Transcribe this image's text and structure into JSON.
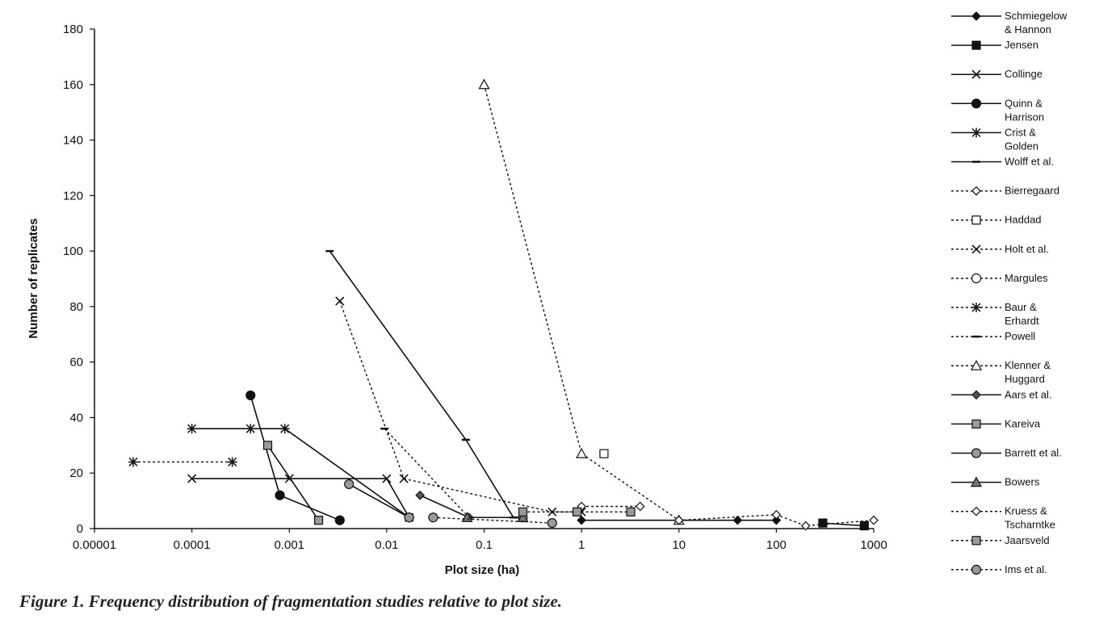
{
  "caption": "Figure 1.  Frequency distribution of fragmentation studies relative to plot size.",
  "chart_data": {
    "type": "scatter",
    "xlabel": "Plot size (ha)",
    "ylabel": "Number of replicates",
    "xscale": "log",
    "xlim": [
      1e-05,
      1000
    ],
    "ylim": [
      0,
      180
    ],
    "xticks": [
      "0.00001",
      "0.0001",
      "0.001",
      "0.01",
      "0.1",
      "1",
      "10",
      "100",
      "1000"
    ],
    "yticks": [
      "0",
      "20",
      "40",
      "60",
      "80",
      "100",
      "120",
      "140",
      "160",
      "180"
    ],
    "grid": false,
    "legend": "right",
    "series": [
      {
        "name": "Schmiegelow & Hannon",
        "name_lines": [
          "Schmiegelow",
          "& Hannon"
        ],
        "line": "solid",
        "marker": "diamond",
        "fill": "#111111",
        "x": [
          1,
          10,
          40,
          100
        ],
        "y": [
          3,
          3,
          3,
          3
        ]
      },
      {
        "name": "Jensen",
        "name_lines": [
          "Jensen"
        ],
        "line": "solid",
        "marker": "square",
        "fill": "#111111",
        "x": [
          300,
          800
        ],
        "y": [
          2,
          1
        ]
      },
      {
        "name": "Collinge",
        "name_lines": [
          "Collinge"
        ],
        "line": "solid",
        "marker": "x",
        "fill": "none",
        "x": [
          0.0001,
          0.001,
          0.01,
          0.017
        ],
        "y": [
          18,
          18,
          18,
          4
        ]
      },
      {
        "name": "Quinn & Harrison",
        "name_lines": [
          "Quinn &",
          "Harrison"
        ],
        "line": "solid",
        "marker": "circle",
        "fill": "#111111",
        "x": [
          0.0004,
          0.0008,
          0.0033
        ],
        "y": [
          48,
          12,
          3
        ]
      },
      {
        "name": "Crist & Golden",
        "name_lines": [
          "Crist &",
          "Golden"
        ],
        "line": "solid",
        "marker": "asterisk",
        "fill": "none",
        "x": [
          0.0001,
          0.0004,
          0.0009,
          0.017
        ],
        "y": [
          36,
          36,
          36,
          4
        ]
      },
      {
        "name": "Wolff et al.",
        "name_lines": [
          "Wolff et al."
        ],
        "line": "solid",
        "marker": "dash",
        "fill": "none",
        "x": [
          0.0026,
          0.065,
          0.2
        ],
        "y": [
          100,
          32,
          4
        ]
      },
      {
        "name": "Bierregaard",
        "name_lines": [
          "Bierregaard"
        ],
        "line": "dotted",
        "marker": "diamond",
        "fill": "#ffffff",
        "x": [
          1,
          4
        ],
        "y": [
          8,
          8
        ]
      },
      {
        "name": "Haddad",
        "name_lines": [
          "Haddad"
        ],
        "line": "dotted",
        "marker": "square",
        "fill": "#ffffff",
        "x": [
          1.7
        ],
        "y": [
          27
        ]
      },
      {
        "name": "Holt et al.",
        "name_lines": [
          "Holt et al."
        ],
        "line": "dotted",
        "marker": "x",
        "fill": "none",
        "x": [
          0.0033,
          0.015,
          0.5,
          1
        ],
        "y": [
          82,
          18,
          6,
          6
        ]
      },
      {
        "name": "Margules",
        "name_lines": [
          "Margules"
        ],
        "line": "dotted",
        "marker": "circle",
        "fill": "#ffffff",
        "x": [
          0.25
        ],
        "y": [
          4
        ]
      },
      {
        "name": "Baur & Erhardt",
        "name_lines": [
          "Baur &",
          "Erhardt"
        ],
        "line": "dotted",
        "marker": "asterisk",
        "fill": "none",
        "x": [
          2.5e-05,
          0.00026
        ],
        "y": [
          24,
          24
        ]
      },
      {
        "name": "Powell",
        "name_lines": [
          "Powell"
        ],
        "line": "dotted",
        "marker": "dash",
        "fill": "none",
        "x": [
          0.0095,
          0.07
        ],
        "y": [
          36,
          4
        ]
      },
      {
        "name": "Klenner & Huggard",
        "name_lines": [
          "Klenner &",
          "Huggard"
        ],
        "line": "dotted",
        "marker": "triangle",
        "fill": "#ffffff",
        "x": [
          0.1,
          1,
          10
        ],
        "y": [
          160,
          27,
          3
        ]
      },
      {
        "name": "Aars et al.",
        "name_lines": [
          "Aars et al."
        ],
        "line": "solid",
        "marker": "diamond",
        "fill": "#555555",
        "x": [
          0.022,
          0.07
        ],
        "y": [
          12,
          4
        ]
      },
      {
        "name": "Kareiva",
        "name_lines": [
          "Kareiva"
        ],
        "line": "solid",
        "marker": "square",
        "fill": "#999999",
        "x": [
          0.0006,
          0.002
        ],
        "y": [
          30,
          3
        ]
      },
      {
        "name": "Barrett et al.",
        "name_lines": [
          "Barrett et al."
        ],
        "line": "solid",
        "marker": "circle",
        "fill": "#999999",
        "x": [
          0.0041,
          0.017
        ],
        "y": [
          16,
          4
        ]
      },
      {
        "name": "Bowers",
        "name_lines": [
          "Bowers"
        ],
        "line": "solid",
        "marker": "triangle",
        "fill": "#777777",
        "x": [
          0.067,
          0.25
        ],
        "y": [
          4,
          4
        ]
      },
      {
        "name": "Kruess & Tscharntke",
        "name_lines": [
          "Kruess &",
          "Tscharntke"
        ],
        "line": "dotted",
        "marker": "diamond",
        "fill": "#ffffff",
        "x": [
          10,
          100,
          200,
          1000
        ],
        "y": [
          3,
          5,
          1,
          3
        ]
      },
      {
        "name": "Jaarsveld",
        "name_lines": [
          "Jaarsveld"
        ],
        "line": "dotted",
        "marker": "square",
        "fill": "#999999",
        "x": [
          0.25,
          0.9,
          3.2
        ],
        "y": [
          6,
          6,
          6
        ]
      },
      {
        "name": "Ims et al.",
        "name_lines": [
          "Ims et al."
        ],
        "line": "dotted",
        "marker": "circle",
        "fill": "#999999",
        "x": [
          0.03,
          0.5
        ],
        "y": [
          4,
          2
        ]
      }
    ]
  }
}
